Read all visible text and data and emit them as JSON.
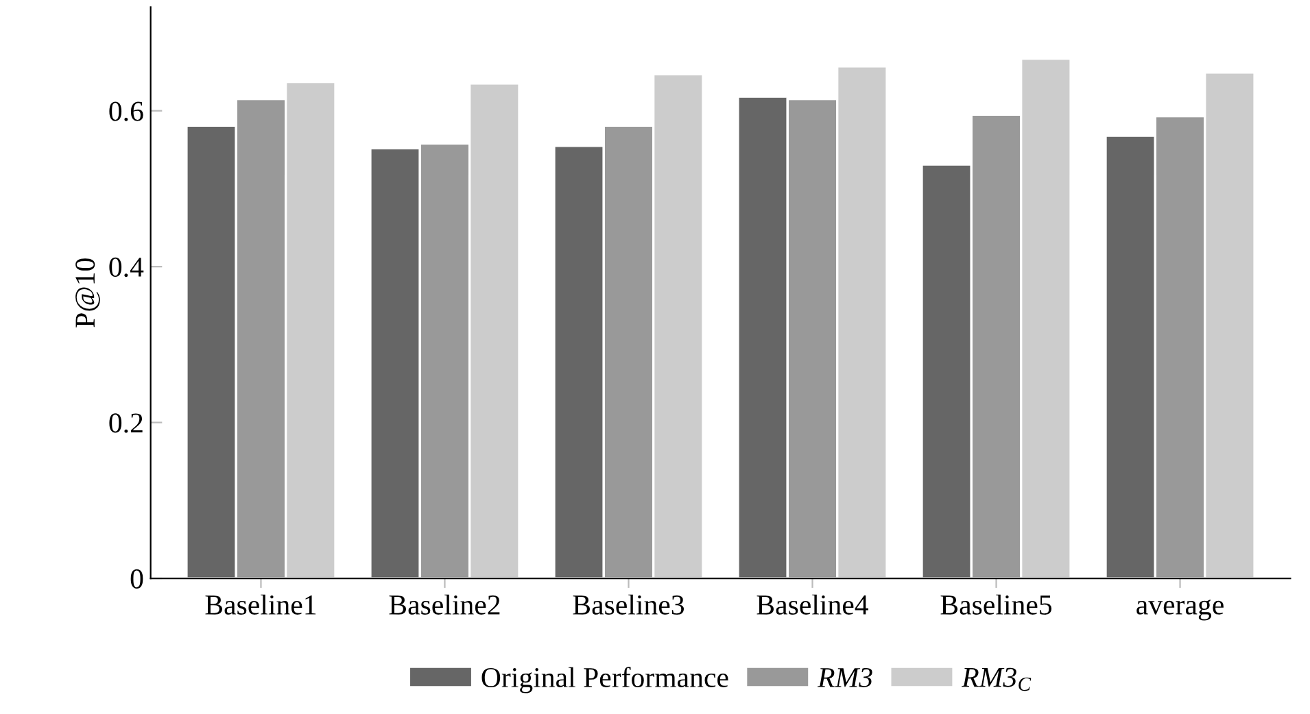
{
  "chart_data": {
    "type": "bar",
    "ylabel": "P@10",
    "categories": [
      "Baseline1",
      "Baseline2",
      "Baseline3",
      "Baseline4",
      "Baseline5",
      "average"
    ],
    "series": [
      {
        "name": "Original Performance",
        "color": "#666666",
        "values": [
          0.581,
          0.552,
          0.555,
          0.618,
          0.531,
          0.568
        ]
      },
      {
        "name": "RM3",
        "color": "#999999",
        "values": [
          0.615,
          0.558,
          0.581,
          0.615,
          0.595,
          0.593
        ]
      },
      {
        "name": "RM3$_{C}$",
        "color": "#cccccc",
        "values": [
          0.637,
          0.635,
          0.647,
          0.657,
          0.667,
          0.649
        ]
      }
    ],
    "ylim": [
      0,
      0.733
    ],
    "yticks": [
      {
        "value": 0,
        "label": "0"
      },
      0.2,
      0.4,
      0.6
    ],
    "grid": false,
    "legend": "bottom"
  }
}
